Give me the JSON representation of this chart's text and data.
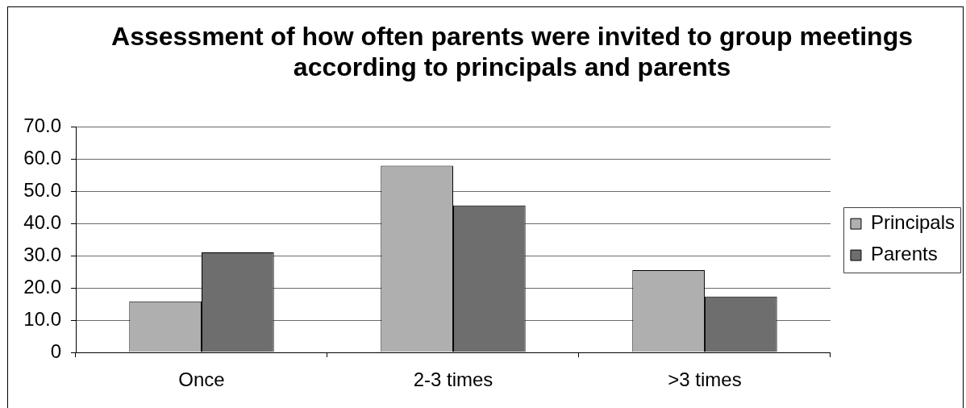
{
  "chart_data": {
    "type": "bar",
    "title": "Assessment of how often parents were invited to group meetings\naccording to principals and parents",
    "categories": [
      "Once",
      "2-3 times",
      ">3 times"
    ],
    "series": [
      {
        "name": "Principals",
        "color": "#afafaf",
        "values": [
          15.8,
          57.9,
          25.5
        ]
      },
      {
        "name": "Parents",
        "color": "#6e6e6e",
        "values": [
          31.0,
          45.6,
          17.3
        ]
      }
    ],
    "ylim": [
      0,
      70
    ],
    "yticks": [
      0,
      {
        "value": 10,
        "label": "10.0"
      },
      {
        "value": 20,
        "label": "20.0"
      },
      {
        "value": 30,
        "label": "30.0"
      },
      {
        "value": 40,
        "label": "40.0"
      },
      {
        "value": 50,
        "label": "50.0"
      },
      {
        "value": 60,
        "label": "60.0"
      },
      {
        "value": 70,
        "label": "70.0"
      }
    ],
    "grid": "y",
    "legend": "right"
  }
}
